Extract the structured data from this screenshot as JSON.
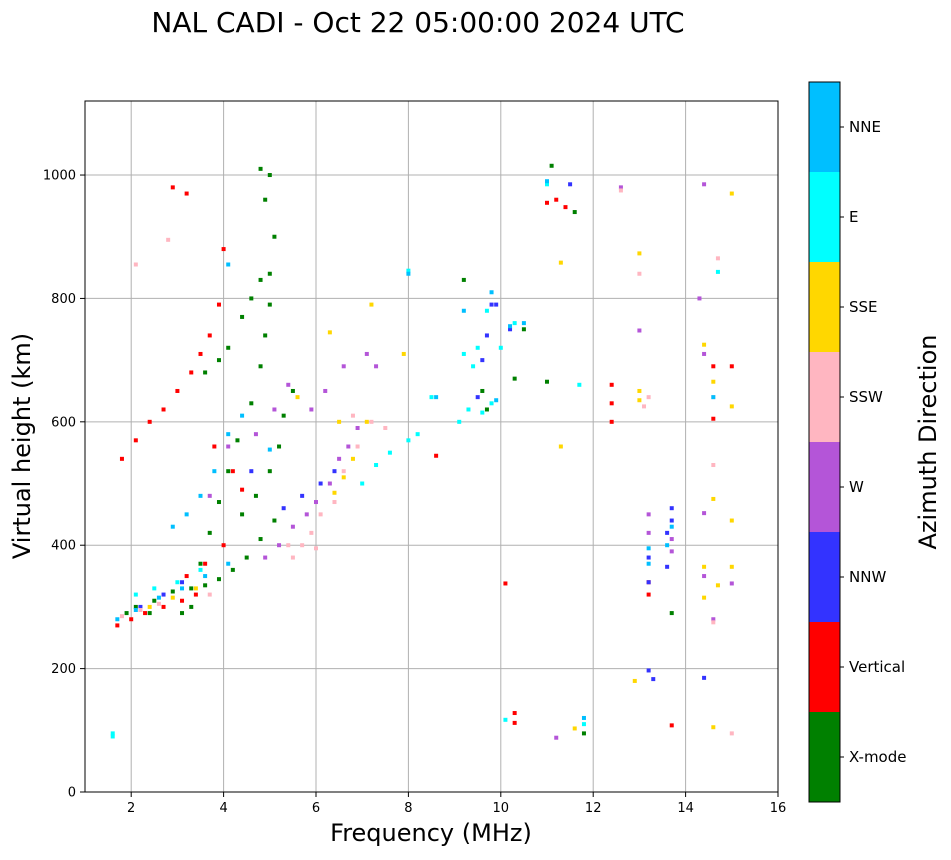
{
  "chart_data": {
    "type": "scatter",
    "title": "NAL CADI - Oct 22 05:00:00 2024 UTC",
    "xlabel": "Frequency (MHz)",
    "ylabel": "Virtual height (km)",
    "xlim": [
      1,
      16
    ],
    "ylim": [
      0,
      1120
    ],
    "xticks": [
      2,
      4,
      6,
      8,
      10,
      12,
      14,
      16
    ],
    "yticks": [
      0,
      200,
      400,
      600,
      800,
      1000
    ],
    "grid": true,
    "colorbar": {
      "label": "Azimuth Direction",
      "categories": [
        {
          "name": "X-mode",
          "color": "#008000"
        },
        {
          "name": "Vertical",
          "color": "#ff0000"
        },
        {
          "name": "NNW",
          "color": "#3333ff"
        },
        {
          "name": "W",
          "color": "#b455d8"
        },
        {
          "name": "SSW",
          "color": "#ffb6c1"
        },
        {
          "name": "SSE",
          "color": "#ffd700"
        },
        {
          "name": "E",
          "color": "#00ffff"
        },
        {
          "name": "NNE",
          "color": "#00bfff"
        }
      ]
    },
    "series": [
      {
        "name": "X-mode",
        "points": [
          [
            1.9,
            290
          ],
          [
            2.1,
            300
          ],
          [
            2.5,
            310
          ],
          [
            2.9,
            325
          ],
          [
            3.3,
            330
          ],
          [
            3.6,
            335
          ],
          [
            3.9,
            345
          ],
          [
            4.2,
            360
          ],
          [
            4.5,
            380
          ],
          [
            4.8,
            410
          ],
          [
            3.5,
            370
          ],
          [
            3.7,
            420
          ],
          [
            3.9,
            470
          ],
          [
            4.1,
            520
          ],
          [
            4.3,
            570
          ],
          [
            4.6,
            630
          ],
          [
            4.8,
            690
          ],
          [
            4.9,
            740
          ],
          [
            5.0,
            790
          ],
          [
            5.0,
            840
          ],
          [
            5.1,
            900
          ],
          [
            4.9,
            960
          ],
          [
            5.0,
            1000
          ],
          [
            4.8,
            1010
          ],
          [
            3.6,
            680
          ],
          [
            3.9,
            700
          ],
          [
            4.1,
            720
          ],
          [
            4.4,
            770
          ],
          [
            4.6,
            800
          ],
          [
            4.8,
            830
          ],
          [
            3.3,
            300
          ],
          [
            3.1,
            290
          ],
          [
            5.2,
            560
          ],
          [
            5.3,
            610
          ],
          [
            5.5,
            650
          ],
          [
            5.0,
            520
          ],
          [
            4.7,
            480
          ],
          [
            4.4,
            450
          ],
          [
            9.2,
            830
          ],
          [
            9.6,
            650
          ],
          [
            9.7,
            620
          ],
          [
            10.3,
            670
          ],
          [
            10.5,
            750
          ],
          [
            11.0,
            665
          ],
          [
            11.1,
            1015
          ],
          [
            11.6,
            940
          ],
          [
            11.8,
            95
          ],
          [
            13.7,
            290
          ],
          [
            5.1,
            440
          ],
          [
            2.4,
            290
          ]
        ]
      },
      {
        "name": "Vertical",
        "points": [
          [
            1.7,
            270
          ],
          [
            2.0,
            280
          ],
          [
            2.3,
            290
          ],
          [
            2.7,
            300
          ],
          [
            3.1,
            310
          ],
          [
            3.4,
            320
          ],
          [
            1.8,
            540
          ],
          [
            2.1,
            570
          ],
          [
            2.4,
            600
          ],
          [
            2.7,
            620
          ],
          [
            3.0,
            650
          ],
          [
            3.3,
            680
          ],
          [
            3.5,
            710
          ],
          [
            3.7,
            740
          ],
          [
            3.9,
            790
          ],
          [
            3.2,
            970
          ],
          [
            2.9,
            980
          ],
          [
            4.0,
            880
          ],
          [
            3.8,
            560
          ],
          [
            4.2,
            520
          ],
          [
            4.4,
            490
          ],
          [
            4.0,
            400
          ],
          [
            3.6,
            370
          ],
          [
            3.2,
            350
          ],
          [
            8.6,
            545
          ],
          [
            10.1,
            338
          ],
          [
            10.3,
            128
          ],
          [
            10.3,
            112
          ],
          [
            11.0,
            955
          ],
          [
            11.2,
            960
          ],
          [
            11.4,
            948
          ],
          [
            12.4,
            600
          ],
          [
            12.4,
            630
          ],
          [
            12.4,
            660
          ],
          [
            13.2,
            320
          ],
          [
            13.2,
            340
          ],
          [
            13.7,
            108
          ],
          [
            14.6,
            690
          ],
          [
            14.6,
            605
          ],
          [
            15.0,
            690
          ]
        ]
      },
      {
        "name": "NNW",
        "points": [
          [
            9.5,
            640
          ],
          [
            9.6,
            700
          ],
          [
            9.7,
            740
          ],
          [
            9.8,
            790
          ],
          [
            10.2,
            750
          ],
          [
            13.2,
            340
          ],
          [
            13.2,
            380
          ],
          [
            13.6,
            420
          ],
          [
            13.7,
            440
          ],
          [
            13.7,
            460
          ],
          [
            13.6,
            365
          ],
          [
            13.2,
            197
          ],
          [
            13.3,
            183
          ],
          [
            14.4,
            185
          ],
          [
            5.3,
            460
          ],
          [
            5.7,
            480
          ],
          [
            6.1,
            500
          ],
          [
            6.4,
            520
          ],
          [
            2.2,
            300
          ],
          [
            2.7,
            320
          ],
          [
            3.1,
            340
          ],
          [
            4.6,
            520
          ],
          [
            11.5,
            985
          ],
          [
            9.9,
            790
          ]
        ]
      },
      {
        "name": "W",
        "points": [
          [
            4.9,
            380
          ],
          [
            5.2,
            400
          ],
          [
            5.5,
            430
          ],
          [
            5.8,
            450
          ],
          [
            6.0,
            470
          ],
          [
            6.3,
            500
          ],
          [
            6.5,
            540
          ],
          [
            6.7,
            560
          ],
          [
            6.9,
            590
          ],
          [
            5.9,
            620
          ],
          [
            6.2,
            650
          ],
          [
            6.6,
            690
          ],
          [
            7.1,
            710
          ],
          [
            7.3,
            690
          ],
          [
            4.7,
            580
          ],
          [
            5.1,
            620
          ],
          [
            5.4,
            660
          ],
          [
            13.2,
            420
          ],
          [
            13.2,
            450
          ],
          [
            13.7,
            410
          ],
          [
            13.7,
            390
          ],
          [
            14.3,
            800
          ],
          [
            14.4,
            985
          ],
          [
            12.6,
            980
          ],
          [
            13.0,
            748
          ],
          [
            14.4,
            710
          ],
          [
            14.4,
            350
          ],
          [
            14.6,
            280
          ],
          [
            15.0,
            338
          ],
          [
            14.4,
            452
          ],
          [
            11.2,
            88
          ],
          [
            4.1,
            560
          ],
          [
            3.7,
            480
          ]
        ]
      },
      {
        "name": "SSW",
        "points": [
          [
            1.8,
            285
          ],
          [
            2.2,
            295
          ],
          [
            2.6,
            305
          ],
          [
            5.5,
            380
          ],
          [
            5.7,
            400
          ],
          [
            5.9,
            420
          ],
          [
            6.1,
            450
          ],
          [
            6.4,
            470
          ],
          [
            6.6,
            520
          ],
          [
            6.9,
            560
          ],
          [
            7.2,
            600
          ],
          [
            7.5,
            590
          ],
          [
            6.8,
            610
          ],
          [
            12.6,
            975
          ],
          [
            13.0,
            840
          ],
          [
            14.6,
            640
          ],
          [
            14.6,
            530
          ],
          [
            14.7,
            865
          ],
          [
            15.0,
            95
          ],
          [
            13.1,
            625
          ],
          [
            13.2,
            640
          ],
          [
            2.8,
            895
          ],
          [
            2.1,
            855
          ],
          [
            3.7,
            320
          ],
          [
            5.4,
            400
          ],
          [
            6.0,
            395
          ],
          [
            14.6,
            275
          ]
        ]
      },
      {
        "name": "SSE",
        "points": [
          [
            2.4,
            300
          ],
          [
            2.9,
            315
          ],
          [
            3.4,
            330
          ],
          [
            6.4,
            485
          ],
          [
            6.6,
            510
          ],
          [
            6.8,
            540
          ],
          [
            7.1,
            600
          ],
          [
            7.2,
            790
          ],
          [
            7.9,
            710
          ],
          [
            12.9,
            180
          ],
          [
            13.0,
            650
          ],
          [
            13.0,
            635
          ],
          [
            13.0,
            873
          ],
          [
            14.4,
            725
          ],
          [
            14.6,
            665
          ],
          [
            14.6,
            475
          ],
          [
            14.7,
            335
          ],
          [
            14.4,
            365
          ],
          [
            14.4,
            315
          ],
          [
            15.0,
            970
          ],
          [
            15.0,
            625
          ],
          [
            15.0,
            440
          ],
          [
            15.0,
            365
          ],
          [
            14.6,
            105
          ],
          [
            11.3,
            560
          ],
          [
            11.3,
            858
          ],
          [
            11.6,
            103
          ],
          [
            6.5,
            600
          ],
          [
            5.6,
            640
          ],
          [
            6.3,
            745
          ]
        ]
      },
      {
        "name": "E",
        "points": [
          [
            1.6,
            90
          ],
          [
            1.6,
            95
          ],
          [
            2.1,
            320
          ],
          [
            2.5,
            330
          ],
          [
            3.0,
            340
          ],
          [
            3.5,
            360
          ],
          [
            7.0,
            500
          ],
          [
            7.3,
            530
          ],
          [
            7.6,
            550
          ],
          [
            8.0,
            570
          ],
          [
            8.2,
            580
          ],
          [
            8.5,
            640
          ],
          [
            9.1,
            600
          ],
          [
            9.3,
            620
          ],
          [
            9.6,
            615
          ],
          [
            9.8,
            630
          ],
          [
            10.0,
            720
          ],
          [
            10.3,
            760
          ],
          [
            9.4,
            690
          ],
          [
            9.5,
            720
          ],
          [
            10.1,
            117
          ],
          [
            11.8,
            110
          ],
          [
            14.7,
            843
          ],
          [
            11.0,
            985
          ],
          [
            11.7,
            660
          ],
          [
            8.0,
            845
          ],
          [
            9.2,
            710
          ],
          [
            9.7,
            780
          ]
        ]
      },
      {
        "name": "NNE",
        "points": [
          [
            1.7,
            280
          ],
          [
            2.1,
            295
          ],
          [
            2.6,
            315
          ],
          [
            3.1,
            330
          ],
          [
            3.6,
            350
          ],
          [
            4.1,
            370
          ],
          [
            2.9,
            430
          ],
          [
            3.2,
            450
          ],
          [
            3.5,
            480
          ],
          [
            3.8,
            520
          ],
          [
            4.1,
            580
          ],
          [
            4.4,
            610
          ],
          [
            4.1,
            855
          ],
          [
            8.0,
            840
          ],
          [
            8.6,
            640
          ],
          [
            9.2,
            780
          ],
          [
            9.8,
            810
          ],
          [
            10.5,
            760
          ],
          [
            11.0,
            990
          ],
          [
            11.8,
            120
          ],
          [
            13.2,
            370
          ],
          [
            13.2,
            395
          ],
          [
            13.7,
            430
          ],
          [
            13.6,
            400
          ],
          [
            14.6,
            640
          ],
          [
            9.9,
            635
          ],
          [
            10.2,
            755
          ],
          [
            5.0,
            555
          ]
        ]
      }
    ]
  }
}
